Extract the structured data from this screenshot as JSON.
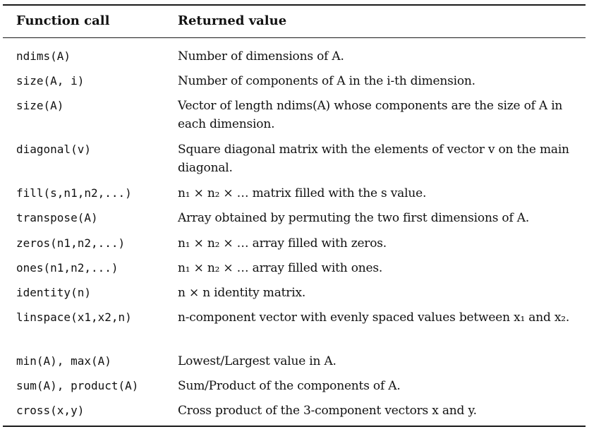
{
  "header": {
    "function_call": "Function call",
    "returned_value": "Returned value"
  },
  "rows": [
    {
      "call": "ndims(A)",
      "value": "Number of dimensions of A."
    },
    {
      "call": "size(A, i)",
      "value": "Number of components of A in the i-th dimension."
    },
    {
      "call": "size(A)",
      "value": "Vector of length ndims(A) whose components are the size of A in each dimension."
    },
    {
      "call": "diagonal(v)",
      "value": "Square diagonal matrix with the elements of vector v on the main diagonal."
    },
    {
      "call": "fill(s,n1,n2,...)",
      "value": "n₁ × n₂ × … matrix filled with the s value."
    },
    {
      "call": "transpose(A)",
      "value": "Array obtained by permuting the two first dimensions of A."
    },
    {
      "call": "zeros(n1,n2,...)",
      "value": "n₁ × n₂ × … array filled with zeros."
    },
    {
      "call": "ones(n1,n2,...)",
      "value": "n₁ × n₂ × … array filled with ones."
    },
    {
      "call": "identity(n)",
      "value": "n × n identity matrix."
    },
    {
      "call": "linspace(x1,x2,n)",
      "value": "n-component vector with evenly spaced values between x₁ and x₂."
    },
    {
      "call": "min(A), max(A)",
      "value": "Lowest/Largest value in A."
    },
    {
      "call": "sum(A), product(A)",
      "value": "Sum/Product of the components of A."
    },
    {
      "call": "cross(x,y)",
      "value": "Cross product of the 3-component vectors x and y."
    }
  ]
}
